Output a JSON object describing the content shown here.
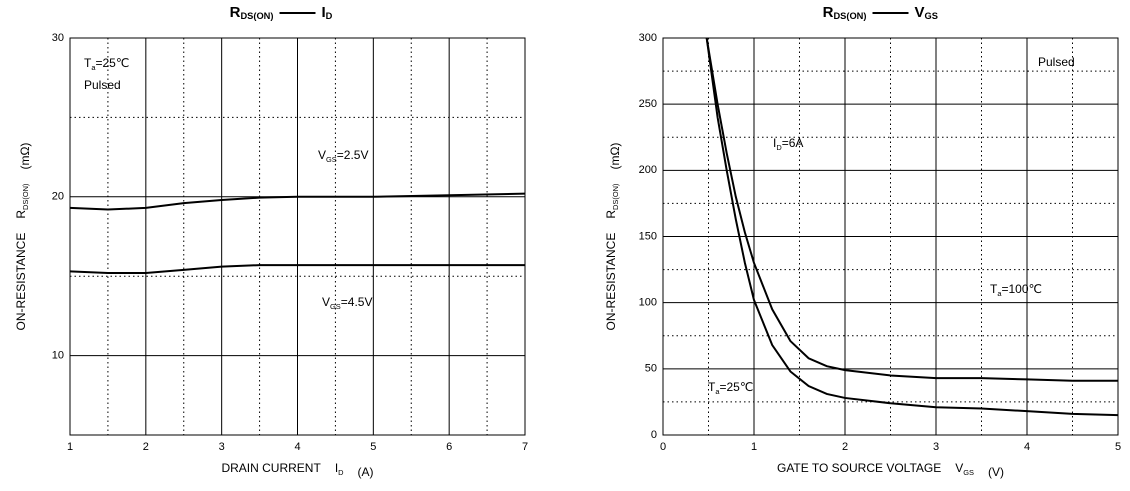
{
  "chart_data": [
    {
      "type": "line",
      "title": [
        {
          "text": "R",
          "sub": "DS(ON)"
        },
        {
          "text": "I",
          "sub": "D"
        }
      ],
      "xlabel": [
        {
          "text": "DRAIN CURRENT"
        },
        {
          "text": "I",
          "sub": "D"
        },
        {
          "text": "(A)"
        }
      ],
      "ylabel": [
        {
          "text": "ON-RESISTANCE"
        },
        {
          "text": "R",
          "sub": "DS(ON)"
        },
        {
          "text": "(mΩ)"
        }
      ],
      "xlim": [
        1,
        7
      ],
      "xticks": [
        1,
        2,
        3,
        4,
        5,
        6,
        7
      ],
      "ylim": [
        5,
        30
      ],
      "yticks": [
        10,
        20,
        30
      ],
      "x": [
        1,
        1.5,
        2,
        2.5,
        3,
        3.5,
        4,
        5,
        6,
        7
      ],
      "series": [
        {
          "label": {
            "text": "V",
            "sub": "GS",
            "tail": "=2.5V"
          },
          "color": "#000000",
          "values": [
            19.3,
            19.2,
            19.3,
            19.6,
            19.8,
            19.95,
            20.0,
            20.0,
            20.1,
            20.2
          ]
        },
        {
          "label": {
            "text": "V",
            "sub": "GS",
            "tail": "=4.5V"
          },
          "color": "#000000",
          "values": [
            15.3,
            15.2,
            15.2,
            15.4,
            15.6,
            15.7,
            15.7,
            15.7,
            15.7,
            15.7
          ]
        }
      ],
      "annotations": [
        {
          "text": "T",
          "sub": "a",
          "tail": "=25℃"
        },
        {
          "text": "Pulsed"
        }
      ],
      "grid": true
    },
    {
      "type": "line",
      "title": [
        {
          "text": "R",
          "sub": "DS(ON)"
        },
        {
          "text": "V",
          "sub": "GS"
        }
      ],
      "xlabel": [
        {
          "text": "GATE TO SOURCE VOLTAGE"
        },
        {
          "text": "V",
          "sub": "GS"
        },
        {
          "text": "(V)"
        }
      ],
      "ylabel": [
        {
          "text": "ON-RESISTANCE"
        },
        {
          "text": "R",
          "sub": "DS(ON)"
        },
        {
          "text": "(mΩ)"
        }
      ],
      "xlim": [
        0,
        5
      ],
      "xticks": [
        0,
        1,
        2,
        3,
        4,
        5
      ],
      "ylim": [
        0,
        300
      ],
      "yticks": [
        0,
        50,
        100,
        150,
        200,
        250,
        300
      ],
      "x": [
        0.48,
        0.6,
        0.7,
        0.8,
        0.9,
        1.0,
        1.2,
        1.4,
        1.6,
        1.8,
        2.0,
        2.5,
        3.0,
        3.5,
        4.0,
        4.5,
        5.0
      ],
      "series": [
        {
          "label": {
            "text": "T",
            "sub": "a",
            "tail": "=25℃"
          },
          "color": "#000000",
          "values": [
            300,
            240,
            200,
            163,
            130,
            102,
            68,
            48,
            37,
            31,
            28,
            24,
            21,
            20,
            18,
            16,
            15
          ]
        },
        {
          "label": {
            "text": "T",
            "sub": "a",
            "tail": "=100℃"
          },
          "color": "#000000",
          "values": [
            300,
            250,
            213,
            180,
            153,
            130,
            95,
            71,
            58,
            52,
            49,
            45,
            43,
            43,
            42,
            41,
            41
          ]
        }
      ],
      "annotations": [
        {
          "text": "Pulsed"
        },
        {
          "text": "I",
          "sub": "D",
          "tail": "=6A"
        }
      ],
      "grid": true
    }
  ]
}
